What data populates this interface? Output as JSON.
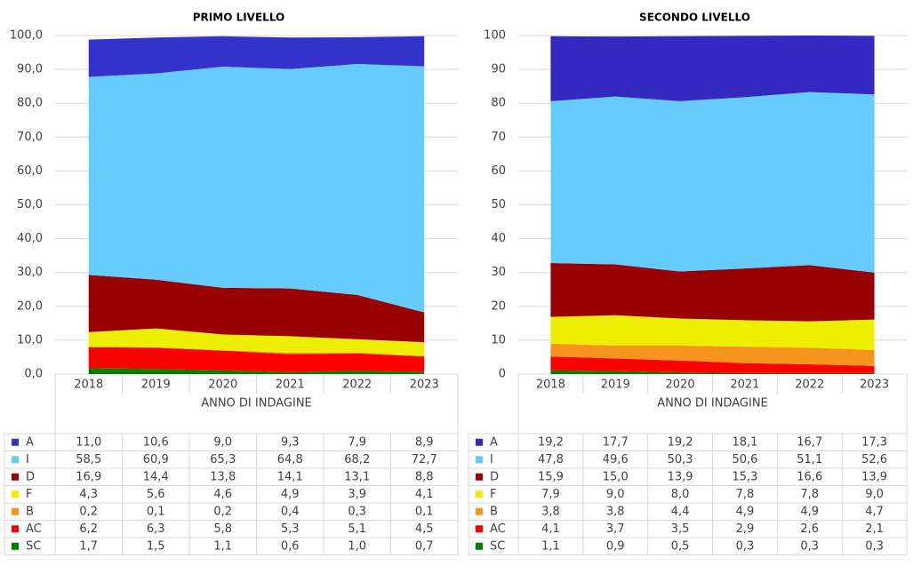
{
  "chart_data": [
    {
      "type": "area",
      "stacked": true,
      "title": "PRIMO LIVELLO",
      "xlabel": "ANNO DI INDAGINE",
      "categories": [
        "2018",
        "2019",
        "2020",
        "2021",
        "2022",
        "2023"
      ],
      "ylim": [
        0,
        100
      ],
      "yticks": [
        {
          "value": 0,
          "label": "0,0"
        },
        {
          "value": 10,
          "label": "10,0"
        },
        {
          "value": 20,
          "label": "20,0"
        },
        {
          "value": 30,
          "label": "30,0"
        },
        {
          "value": 40,
          "label": "40,0"
        },
        {
          "value": 50,
          "label": "50,0"
        },
        {
          "value": 60,
          "label": "60,0"
        },
        {
          "value": 70,
          "label": "70,0"
        },
        {
          "value": 80,
          "label": "80,0"
        },
        {
          "value": 90,
          "label": "90,0"
        },
        {
          "value": 100,
          "label": "100,0"
        }
      ],
      "grid": true,
      "series": [
        {
          "name": "A",
          "color": "#3333cc",
          "values": [
            11.0,
            10.6,
            9.0,
            9.3,
            7.9,
            8.9
          ],
          "value_labels": [
            "11,0",
            "10,6",
            "9,0",
            "9,3",
            "7,9",
            "8,9"
          ]
        },
        {
          "name": "I",
          "color": "#66ccff",
          "values": [
            58.5,
            60.9,
            65.3,
            64.8,
            68.2,
            72.7
          ],
          "value_labels": [
            "58,5",
            "60,9",
            "65,3",
            "64,8",
            "68,2",
            "72,7"
          ]
        },
        {
          "name": "D",
          "color": "#990000",
          "values": [
            16.9,
            14.4,
            13.8,
            14.1,
            13.1,
            8.8
          ],
          "value_labels": [
            "16,9",
            "14,4",
            "13,8",
            "14,1",
            "13,1",
            "8,8"
          ]
        },
        {
          "name": "F",
          "color": "#eeee00",
          "values": [
            4.3,
            5.6,
            4.6,
            4.9,
            3.9,
            4.1
          ],
          "value_labels": [
            "4,3",
            "5,6",
            "4,6",
            "4,9",
            "3,9",
            "4,1"
          ]
        },
        {
          "name": "B",
          "color": "#f7941d",
          "values": [
            0.2,
            0.1,
            0.2,
            0.4,
            0.3,
            0.1
          ],
          "value_labels": [
            "0,2",
            "0,1",
            "0,2",
            "0,4",
            "0,3",
            "0,1"
          ]
        },
        {
          "name": "AC",
          "color": "#ff0000",
          "values": [
            6.2,
            6.3,
            5.8,
            5.3,
            5.1,
            4.5
          ],
          "value_labels": [
            "6,2",
            "6,3",
            "5,8",
            "5,3",
            "5,1",
            "4,5"
          ]
        },
        {
          "name": "SC",
          "color": "#008000",
          "values": [
            1.7,
            1.5,
            1.1,
            0.6,
            1.0,
            0.7
          ],
          "value_labels": [
            "1,7",
            "1,5",
            "1,1",
            "0,6",
            "1,0",
            "0,7"
          ]
        }
      ]
    },
    {
      "type": "area",
      "stacked": true,
      "title": "SECONDO LIVELLO",
      "xlabel": "ANNO DI INDAGINE",
      "categories": [
        "2018",
        "2019",
        "2020",
        "2021",
        "2022",
        "2023"
      ],
      "ylim": [
        0,
        100
      ],
      "yticks": [
        0,
        10,
        20,
        30,
        40,
        50,
        60,
        70,
        80,
        90,
        100
      ],
      "grid": true,
      "series": [
        {
          "name": "A",
          "color": "#3328c0",
          "values": [
            19.2,
            17.7,
            19.2,
            18.1,
            16.7,
            17.3
          ],
          "value_labels": [
            "19,2",
            "17,7",
            "19,2",
            "18,1",
            "16,7",
            "17,3"
          ]
        },
        {
          "name": "I",
          "color": "#66ccff",
          "values": [
            47.8,
            49.6,
            50.3,
            50.6,
            51.1,
            52.6
          ],
          "value_labels": [
            "47,8",
            "49,6",
            "50,3",
            "50,6",
            "51,1",
            "52,6"
          ]
        },
        {
          "name": "D",
          "color": "#990000",
          "values": [
            15.9,
            15.0,
            13.9,
            15.3,
            16.6,
            13.9
          ],
          "value_labels": [
            "15,9",
            "15,0",
            "13,9",
            "15,3",
            "16,6",
            "13,9"
          ]
        },
        {
          "name": "F",
          "color": "#eeee00",
          "values": [
            7.9,
            9.0,
            8.0,
            7.8,
            7.8,
            9.0
          ],
          "value_labels": [
            "7,9",
            "9,0",
            "8,0",
            "7,8",
            "7,8",
            "9,0"
          ]
        },
        {
          "name": "B",
          "color": "#f7941d",
          "values": [
            3.8,
            3.8,
            4.4,
            4.9,
            4.9,
            4.7
          ],
          "value_labels": [
            "3,8",
            "3,8",
            "4,4",
            "4,9",
            "4,9",
            "4,7"
          ]
        },
        {
          "name": "AC",
          "color": "#ff0000",
          "values": [
            4.1,
            3.7,
            3.5,
            2.9,
            2.6,
            2.1
          ],
          "value_labels": [
            "4,1",
            "3,7",
            "3,5",
            "2,9",
            "2,6",
            "2,1"
          ]
        },
        {
          "name": "SC",
          "color": "#008000",
          "values": [
            1.1,
            0.9,
            0.5,
            0.3,
            0.3,
            0.3
          ],
          "value_labels": [
            "1,1",
            "0,9",
            "0,5",
            "0,3",
            "0,3",
            "0,3"
          ]
        }
      ]
    }
  ]
}
